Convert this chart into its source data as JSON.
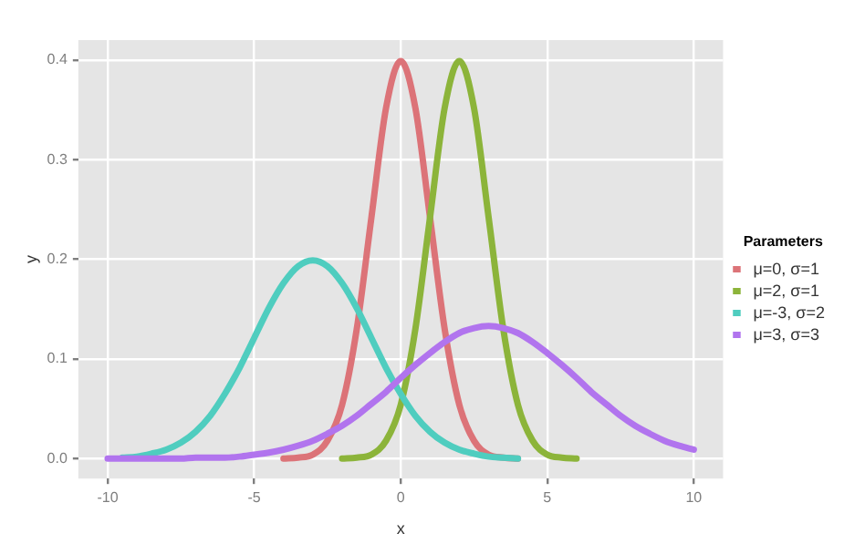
{
  "chart_data": {
    "type": "line",
    "xlabel": "x",
    "ylabel": "y",
    "legend_title": "Parameters",
    "legend": "right",
    "grid": true,
    "marker": "none",
    "line_style": "solid",
    "xlim": [
      -11,
      11
    ],
    "xticks": [
      -10,
      -5,
      0,
      5,
      10
    ],
    "ylim": [
      -0.02,
      0.42
    ],
    "yticks": [
      {
        "value": 0,
        "label": "0.0"
      },
      {
        "value": 0.1,
        "label": "0.1"
      },
      {
        "value": 0.2,
        "label": "0.2"
      },
      {
        "value": 0.3,
        "label": "0.3"
      },
      {
        "value": 0.4,
        "label": "0.4"
      }
    ],
    "x": [
      -10,
      -9.5,
      -9,
      -8.5,
      -8,
      -7.5,
      -7,
      -6.5,
      -6,
      -5.5,
      -5,
      -4.5,
      -4,
      -3.5,
      -3,
      -2.5,
      -2,
      -1.5,
      -1,
      -0.5,
      0,
      0.5,
      1,
      1.5,
      2,
      2.5,
      3,
      3.5,
      4,
      4.5,
      5,
      5.5,
      6,
      6.5,
      7,
      7.5,
      8,
      8.5,
      9,
      9.5,
      10
    ],
    "series": [
      {
        "name": "μ=0, σ=1",
        "color": "#dc7378",
        "x": [
          -4,
          -3.5,
          -3,
          -2.5,
          -2,
          -1.5,
          -1,
          -0.5,
          0,
          0.5,
          1,
          1.5,
          2,
          2.5,
          3,
          3.5,
          4
        ],
        "values": [
          0,
          0.001,
          0.004,
          0.018,
          0.054,
          0.13,
          0.242,
          0.352,
          0.399,
          0.352,
          0.242,
          0.13,
          0.054,
          0.018,
          0.004,
          0.001,
          0
        ]
      },
      {
        "name": "μ=2, σ=1",
        "color": "#8cb43a",
        "x": [
          -2,
          -1.5,
          -1,
          -0.5,
          0,
          0.5,
          1,
          1.5,
          2,
          2.5,
          3,
          3.5,
          4,
          4.5,
          5,
          5.5,
          6
        ],
        "values": [
          0,
          0.001,
          0.004,
          0.018,
          0.054,
          0.13,
          0.242,
          0.352,
          0.399,
          0.352,
          0.242,
          0.13,
          0.054,
          0.018,
          0.004,
          0.001,
          0
        ]
      },
      {
        "name": "μ=-3, σ=2",
        "color": "#4fcdbf",
        "x": [
          -9.5,
          -9,
          -8.5,
          -8,
          -7.5,
          -7,
          -6.5,
          -6,
          -5.5,
          -5,
          -4.5,
          -4,
          -3.5,
          -3,
          -2.5,
          -2,
          -1.5,
          -1,
          -0.5,
          0,
          0.5,
          1,
          1.5,
          2,
          2.5,
          3,
          3.5,
          4
        ],
        "values": [
          0.001,
          0.002,
          0.005,
          0.009,
          0.016,
          0.027,
          0.043,
          0.065,
          0.091,
          0.121,
          0.151,
          0.176,
          0.193,
          0.199,
          0.193,
          0.176,
          0.151,
          0.121,
          0.091,
          0.065,
          0.043,
          0.027,
          0.016,
          0.009,
          0.005,
          0.002,
          0.001,
          0
        ]
      },
      {
        "name": "μ=3, σ=3",
        "color": "#b174ee",
        "values": [
          0,
          0,
          0,
          0,
          0,
          0,
          0.001,
          0.001,
          0.001,
          0.002,
          0.004,
          0.006,
          0.009,
          0.013,
          0.018,
          0.025,
          0.033,
          0.043,
          0.055,
          0.067,
          0.081,
          0.094,
          0.106,
          0.117,
          0.126,
          0.131,
          0.133,
          0.131,
          0.126,
          0.117,
          0.106,
          0.094,
          0.081,
          0.067,
          0.055,
          0.043,
          0.033,
          0.025,
          0.018,
          0.013,
          0.009
        ]
      }
    ]
  }
}
